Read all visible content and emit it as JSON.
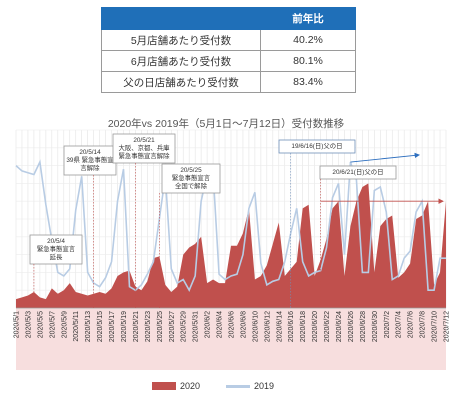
{
  "summary_table": {
    "header": [
      "",
      "前年比"
    ],
    "rows": [
      {
        "label": "5月店舗あたり受付数",
        "value": "40.2%"
      },
      {
        "label": "6月店舗あたり受付数",
        "value": "80.1%"
      },
      {
        "label": "父の日店舗あたり受付数",
        "value": "83.4%"
      }
    ]
  },
  "chart_data": {
    "type": "area",
    "title": "2020年vs 2019年（5月1日～7月12日）受付数推移",
    "x_start": "2020/5/1",
    "x_end": "2020/7/12",
    "tick_labels": [
      "2020/5/1",
      "2020/5/3",
      "2020/5/5",
      "2020/5/7",
      "2020/5/9",
      "2020/5/11",
      "2020/5/13",
      "2020/5/15",
      "2020/5/17",
      "2020/5/19",
      "2020/5/21",
      "2020/5/23",
      "2020/5/25",
      "2020/5/27",
      "2020/5/29",
      "2020/5/31",
      "2020/6/2",
      "2020/6/4",
      "2020/6/6",
      "2020/6/8",
      "2020/6/10",
      "2020/6/12",
      "2020/6/14",
      "2020/6/16",
      "2020/6/18",
      "2020/6/20",
      "2020/6/22",
      "2020/6/24",
      "2020/6/26",
      "2020/6/28",
      "2020/6/30",
      "2020/7/2",
      "2020/7/4",
      "2020/7/6",
      "2020/7/8",
      "2020/7/10",
      "2020/7/12"
    ],
    "grid": true,
    "y_axis_shown": false,
    "series": [
      {
        "name": "2020",
        "style": "area",
        "color": "#c0504d",
        "values": [
          5,
          6,
          7,
          9,
          6,
          5,
          11,
          8,
          10,
          14,
          9,
          8,
          7,
          8,
          9,
          8,
          11,
          18,
          20,
          21,
          12,
          10,
          15,
          28,
          29,
          13,
          9,
          12,
          30,
          34,
          36,
          40,
          14,
          16,
          14,
          14,
          35,
          35,
          42,
          56,
          16,
          18,
          24,
          36,
          48,
          18,
          22,
          26,
          56,
          58,
          18,
          27,
          39,
          56,
          60,
          18,
          46,
          60,
          68,
          70,
          20,
          46,
          50,
          52,
          17,
          20,
          25,
          50,
          52,
          60,
          13,
          20,
          60
        ]
      },
      {
        "name": "2019",
        "style": "line",
        "color": "#b8cce4",
        "values": [
          80,
          77,
          76,
          75,
          82,
          58,
          38,
          20,
          18,
          22,
          55,
          74,
          20,
          14,
          12,
          17,
          26,
          60,
          78,
          12,
          10,
          13,
          19,
          26,
          50,
          74,
          22,
          14,
          16,
          10,
          18,
          60,
          75,
          76,
          19,
          16,
          18,
          19,
          30,
          56,
          65,
          25,
          13,
          15,
          16,
          26,
          42,
          56,
          26,
          18,
          20,
          21,
          34,
          62,
          70,
          30,
          82,
          72,
          20,
          20,
          66,
          68,
          54,
          16,
          18,
          28,
          32,
          54,
          60,
          10,
          10,
          28,
          28
        ]
      }
    ],
    "annotations": [
      {
        "text": [
          "20/5/4",
          "緊急事態宣言",
          "延長"
        ],
        "x_index": 3,
        "style": "callout-red"
      },
      {
        "text": [
          "20/5/14",
          "39県 緊急事態宣",
          "言解除"
        ],
        "x_index": 13,
        "style": "callout-red"
      },
      {
        "text": [
          "20/5/21",
          "大阪、京都、兵庫",
          "緊急事態宣言解除"
        ],
        "x_index": 20,
        "style": "callout-red"
      },
      {
        "text": [
          "20/5/25",
          "緊急事態宣言",
          "全国で解除"
        ],
        "x_index": 24,
        "style": "callout-red"
      },
      {
        "text": [
          "19/6/16(日)父の日"
        ],
        "x_index": 46,
        "style": "callout-blue"
      },
      {
        "text": [
          "20/6/21(日)父の日"
        ],
        "x_index": 51,
        "style": "callout-red"
      }
    ],
    "trend_arrows": [
      {
        "series": "2019",
        "color": "#2e6fbf",
        "from_index": 56,
        "to_index": 68,
        "from_value": 82,
        "to_value": 86
      },
      {
        "series": "2020",
        "color": "#c0504d",
        "from_index": 51,
        "to_index": 72,
        "from_value": 60,
        "to_value": 60
      }
    ]
  }
}
